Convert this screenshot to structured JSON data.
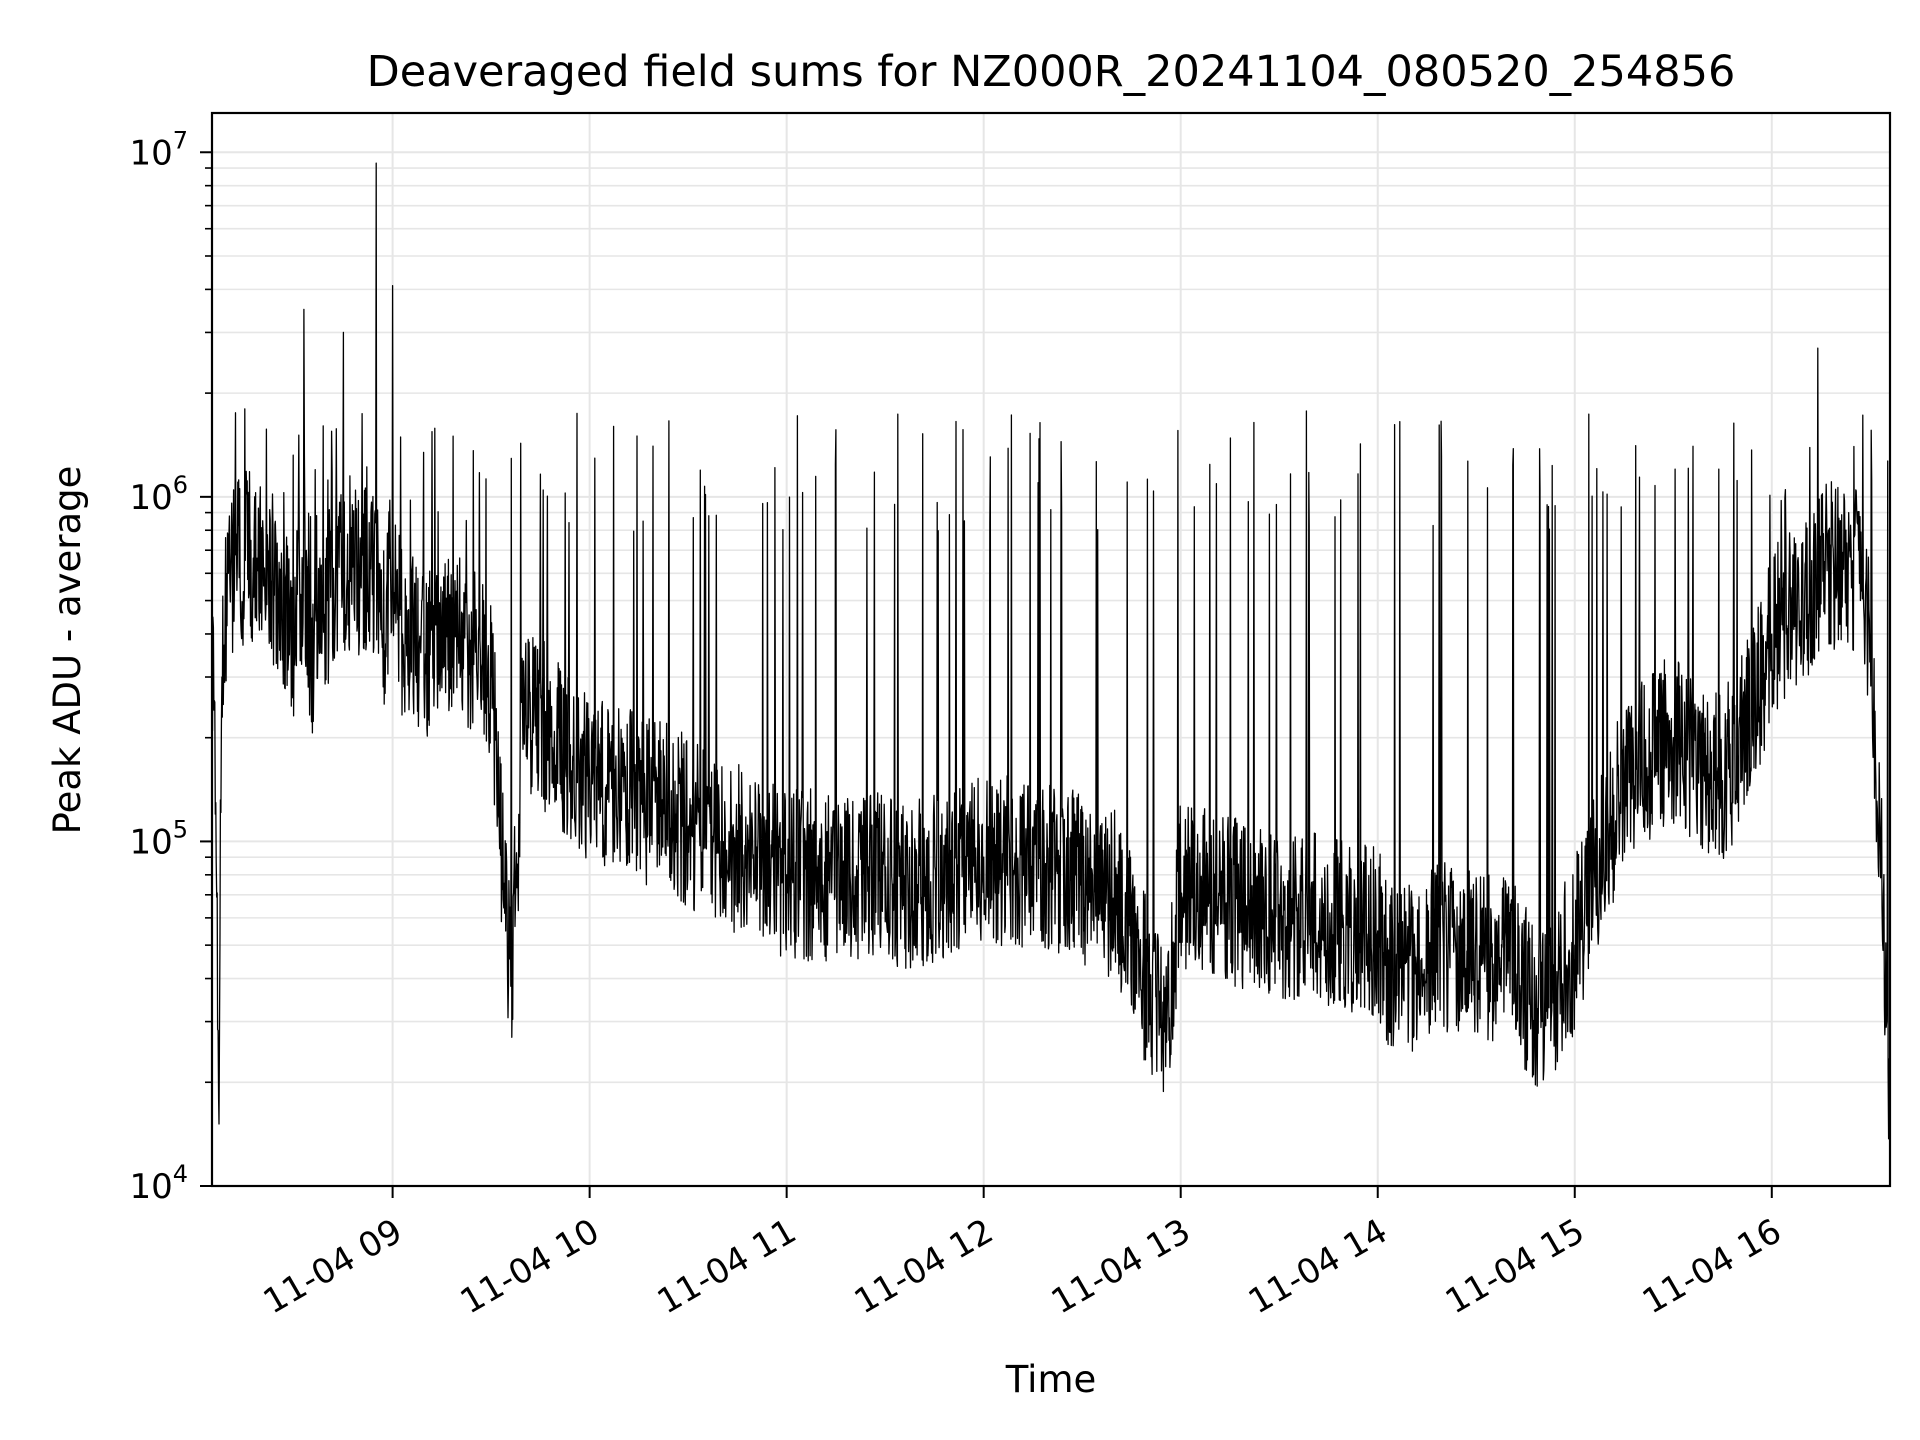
{
  "chart_data": {
    "type": "line",
    "title": "Deaveraged field sums for NZ000R_20241104_080520_254856",
    "xlabel": "Time",
    "ylabel": "Peak ADU - average",
    "yscale": "log",
    "ylim": [
      10000,
      13000000
    ],
    "xlim": [
      "2024-11-04 08:05",
      "2024-11-04 16:36"
    ],
    "grid": true,
    "legend": "none",
    "line_color": "#000000",
    "x_ticks": [
      "2024-11-04 09:00",
      "2024-11-04 10:00",
      "2024-11-04 11:00",
      "2024-11-04 12:00",
      "2024-11-04 13:00",
      "2024-11-04 14:00",
      "2024-11-04 15:00",
      "2024-11-04 16:00"
    ],
    "x_tick_labels": [
      "11-04 09",
      "11-04 10",
      "11-04 11",
      "11-04 12",
      "11-04 13",
      "11-04 14",
      "11-04 15",
      "11-04 16"
    ],
    "y_ticks": [
      {
        "value": 10000,
        "base": "10",
        "exp": "4"
      },
      {
        "value": 100000,
        "base": "10",
        "exp": "5"
      },
      {
        "value": 1000000,
        "base": "10",
        "exp": "6"
      },
      {
        "value": 10000000,
        "base": "10",
        "exp": "7"
      }
    ],
    "series": [
      {
        "x": [
          "2024-11-04 08:05",
          "2024-11-04 08:06",
          "2024-11-04 08:07",
          "2024-11-04 08:08",
          "2024-11-04 08:10",
          "2024-11-04 08:12",
          "2024-11-04 08:15",
          "2024-11-04 08:18",
          "2024-11-04 08:22",
          "2024-11-04 08:26",
          "2024-11-04 08:30",
          "2024-11-04 08:33",
          "2024-11-04 08:36",
          "2024-11-04 08:40",
          "2024-11-04 08:45",
          "2024-11-04 08:50",
          "2024-11-04 08:55",
          "2024-11-04 08:57",
          "2024-11-04 09:00",
          "2024-11-04 09:03",
          "2024-11-04 09:10",
          "2024-11-04 09:20",
          "2024-11-04 09:30",
          "2024-11-04 09:36",
          "2024-11-04 09:40",
          "2024-11-04 09:50",
          "2024-11-04 10:00",
          "2024-11-04 10:20",
          "2024-11-04 10:40",
          "2024-11-04 11:00",
          "2024-11-04 11:20",
          "2024-11-04 11:40",
          "2024-11-04 12:00",
          "2024-11-04 12:20",
          "2024-11-04 12:40",
          "2024-11-04 12:55",
          "2024-11-04 13:00",
          "2024-11-04 13:20",
          "2024-11-04 13:40",
          "2024-11-04 14:00",
          "2024-11-04 14:05",
          "2024-11-04 14:20",
          "2024-11-04 14:40",
          "2024-11-04 14:50",
          "2024-11-04 15:00",
          "2024-11-04 15:15",
          "2024-11-04 15:30",
          "2024-11-04 15:45",
          "2024-11-04 15:55",
          "2024-11-04 16:00",
          "2024-11-04 16:10",
          "2024-11-04 16:14",
          "2024-11-04 16:20",
          "2024-11-04 16:25",
          "2024-11-04 16:30",
          "2024-11-04 16:33",
          "2024-11-04 16:35",
          "2024-11-04 16:36"
        ],
        "values": [
          450000,
          120000,
          18000,
          300000,
          600000,
          900000,
          1800000,
          1000000,
          700000,
          500000,
          400000,
          3500000,
          300000,
          500000,
          3000000,
          600000,
          9300000,
          400000,
          4100000,
          400000,
          350000,
          400000,
          300000,
          38000,
          250000,
          200000,
          150000,
          130000,
          100000,
          80000,
          80000,
          75000,
          90000,
          85000,
          70000,
          28000,
          75000,
          65000,
          60000,
          55000,
          40000,
          50000,
          45000,
          30000,
          50000,
          150000,
          200000,
          150000,
          250000,
          400000,
          500000,
          2700000,
          700000,
          1400000,
          400000,
          100000,
          30000,
          14000
        ]
      }
    ]
  }
}
